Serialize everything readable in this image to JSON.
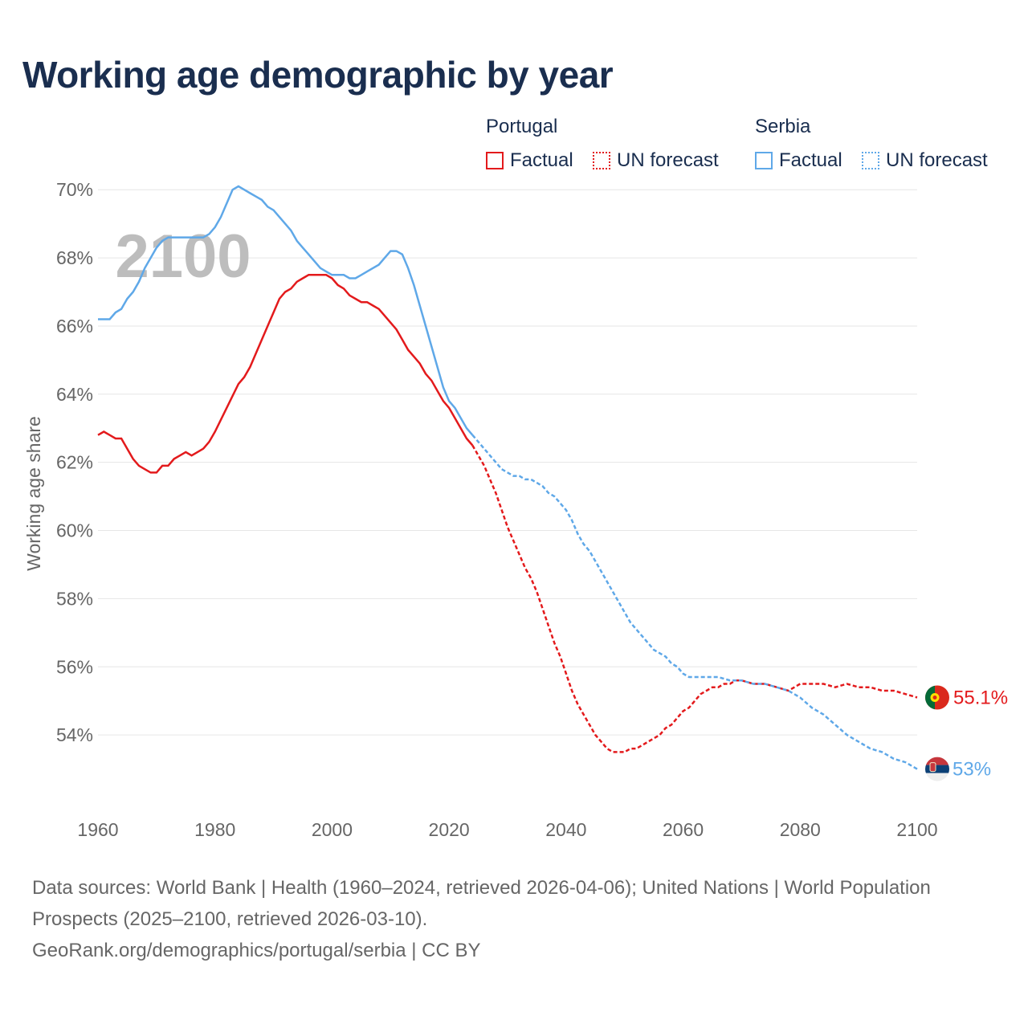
{
  "title": "Working age demographic by year",
  "legend": {
    "portugal": {
      "country": "Portugal",
      "factual": "Factual",
      "forecast": "UN forecast",
      "color": "#e31a1c"
    },
    "serbia": {
      "country": "Serbia",
      "factual": "Factual",
      "forecast": "UN forecast",
      "color": "#5fa8e8"
    }
  },
  "footer": {
    "sources": "Data sources: World Bank | Health (1960–2024, retrieved 2026-04-06); United Nations | World Population Prospects (2025–2100, retrieved 2026-03-10).",
    "credit": "GeoRank.org/demographics/portugal/serbia | CC BY"
  },
  "chart_data": {
    "type": "line",
    "title": "Working age demographic by year",
    "year_watermark": "2100",
    "xlabel": "",
    "ylabel": "Working age share",
    "xlim": [
      1960,
      2100
    ],
    "ylim": [
      52,
      70.5
    ],
    "x_ticks": [
      1960,
      1980,
      2000,
      2020,
      2040,
      2060,
      2080,
      2100
    ],
    "y_ticks": [
      54,
      56,
      58,
      60,
      62,
      64,
      66,
      68,
      70
    ],
    "y_tick_labels": [
      "54%",
      "56%",
      "58%",
      "60%",
      "62%",
      "64%",
      "66%",
      "68%",
      "70%"
    ],
    "grid": true,
    "series": [
      {
        "name": "Portugal",
        "color": "#e31a1c",
        "end_label": "55.1%",
        "factual": {
          "x": [
            1960,
            1961,
            1962,
            1963,
            1964,
            1965,
            1966,
            1967,
            1968,
            1969,
            1970,
            1971,
            1972,
            1973,
            1974,
            1975,
            1976,
            1977,
            1978,
            1979,
            1980,
            1982,
            1984,
            1985,
            1986,
            1987,
            1988,
            1989,
            1990,
            1991,
            1992,
            1993,
            1994,
            1995,
            1996,
            1997,
            1998,
            1999,
            2000,
            2001,
            2002,
            2003,
            2004,
            2005,
            2006,
            2007,
            2008,
            2009,
            2010,
            2011,
            2012,
            2013,
            2014,
            2015,
            2016,
            2017,
            2018,
            2019,
            2020,
            2021,
            2022,
            2023,
            2024
          ],
          "y": [
            62.8,
            62.9,
            62.8,
            62.7,
            62.7,
            62.4,
            62.1,
            61.9,
            61.8,
            61.7,
            61.7,
            61.9,
            61.9,
            62.1,
            62.2,
            62.3,
            62.2,
            62.3,
            62.4,
            62.6,
            62.9,
            63.6,
            64.3,
            64.5,
            64.8,
            65.2,
            65.6,
            66.0,
            66.4,
            66.8,
            67.0,
            67.1,
            67.3,
            67.4,
            67.5,
            67.5,
            67.5,
            67.5,
            67.4,
            67.2,
            67.1,
            66.9,
            66.8,
            66.7,
            66.7,
            66.6,
            66.5,
            66.3,
            66.1,
            65.9,
            65.6,
            65.3,
            65.1,
            64.9,
            64.6,
            64.4,
            64.1,
            63.8,
            63.6,
            63.3,
            63.0,
            62.7,
            62.5
          ]
        },
        "forecast": {
          "x": [
            2024,
            2025,
            2026,
            2027,
            2028,
            2029,
            2030,
            2031,
            2032,
            2033,
            2034,
            2035,
            2036,
            2037,
            2038,
            2039,
            2040,
            2041,
            2042,
            2043,
            2044,
            2045,
            2046,
            2047,
            2048,
            2049,
            2050,
            2051,
            2052,
            2053,
            2054,
            2055,
            2056,
            2057,
            2058,
            2059,
            2060,
            2061,
            2062,
            2063,
            2064,
            2065,
            2066,
            2067,
            2068,
            2069,
            2070,
            2072,
            2074,
            2076,
            2078,
            2080,
            2082,
            2084,
            2086,
            2088,
            2090,
            2092,
            2094,
            2096,
            2098,
            2100
          ],
          "y": [
            62.5,
            62.2,
            61.9,
            61.5,
            61.1,
            60.6,
            60.1,
            59.7,
            59.3,
            58.9,
            58.6,
            58.2,
            57.7,
            57.2,
            56.7,
            56.3,
            55.8,
            55.3,
            54.9,
            54.6,
            54.3,
            54.0,
            53.8,
            53.6,
            53.5,
            53.5,
            53.5,
            53.6,
            53.6,
            53.7,
            53.8,
            53.9,
            54.0,
            54.2,
            54.3,
            54.5,
            54.7,
            54.8,
            55.0,
            55.2,
            55.3,
            55.4,
            55.4,
            55.5,
            55.5,
            55.6,
            55.6,
            55.5,
            55.5,
            55.4,
            55.3,
            55.5,
            55.5,
            55.5,
            55.4,
            55.5,
            55.4,
            55.4,
            55.3,
            55.3,
            55.2,
            55.1
          ]
        }
      },
      {
        "name": "Serbia",
        "color": "#5fa8e8",
        "end_label": "53%",
        "factual": {
          "x": [
            1960,
            1961,
            1962,
            1963,
            1964,
            1965,
            1966,
            1967,
            1968,
            1969,
            1970,
            1971,
            1972,
            1973,
            1974,
            1975,
            1976,
            1977,
            1978,
            1979,
            1980,
            1981,
            1982,
            1983,
            1984,
            1985,
            1986,
            1987,
            1988,
            1989,
            1990,
            1991,
            1992,
            1993,
            1994,
            1995,
            1996,
            1997,
            1998,
            1999,
            2000,
            2001,
            2002,
            2003,
            2004,
            2005,
            2006,
            2007,
            2008,
            2009,
            2010,
            2011,
            2012,
            2013,
            2014,
            2015,
            2016,
            2017,
            2018,
            2019,
            2020,
            2021,
            2022,
            2023,
            2024
          ],
          "y": [
            66.2,
            66.2,
            66.2,
            66.4,
            66.5,
            66.8,
            67.0,
            67.3,
            67.7,
            68.0,
            68.3,
            68.5,
            68.6,
            68.6,
            68.6,
            68.6,
            68.6,
            68.6,
            68.6,
            68.7,
            68.9,
            69.2,
            69.6,
            70.0,
            70.1,
            70.0,
            69.9,
            69.8,
            69.7,
            69.5,
            69.4,
            69.2,
            69.0,
            68.8,
            68.5,
            68.3,
            68.1,
            67.9,
            67.7,
            67.6,
            67.5,
            67.5,
            67.5,
            67.4,
            67.4,
            67.5,
            67.6,
            67.7,
            67.8,
            68.0,
            68.2,
            68.2,
            68.1,
            67.7,
            67.2,
            66.6,
            66.0,
            65.4,
            64.8,
            64.2,
            63.8,
            63.6,
            63.3,
            63.0,
            62.8
          ]
        },
        "forecast": {
          "x": [
            2024,
            2025,
            2026,
            2027,
            2028,
            2029,
            2030,
            2031,
            2032,
            2033,
            2034,
            2035,
            2036,
            2037,
            2038,
            2039,
            2040,
            2041,
            2042,
            2043,
            2044,
            2045,
            2046,
            2047,
            2048,
            2049,
            2050,
            2051,
            2052,
            2053,
            2054,
            2055,
            2056,
            2057,
            2058,
            2059,
            2060,
            2061,
            2062,
            2064,
            2066,
            2068,
            2070,
            2072,
            2074,
            2076,
            2078,
            2080,
            2082,
            2084,
            2086,
            2088,
            2090,
            2092,
            2094,
            2096,
            2098,
            2100
          ],
          "y": [
            62.8,
            62.6,
            62.4,
            62.2,
            62.0,
            61.8,
            61.7,
            61.6,
            61.6,
            61.5,
            61.5,
            61.4,
            61.3,
            61.1,
            61.0,
            60.8,
            60.6,
            60.3,
            59.9,
            59.6,
            59.4,
            59.1,
            58.8,
            58.5,
            58.2,
            57.9,
            57.6,
            57.3,
            57.1,
            56.9,
            56.7,
            56.5,
            56.4,
            56.3,
            56.1,
            56.0,
            55.8,
            55.7,
            55.7,
            55.7,
            55.7,
            55.6,
            55.6,
            55.5,
            55.5,
            55.4,
            55.3,
            55.1,
            54.8,
            54.6,
            54.3,
            54.0,
            53.8,
            53.6,
            53.5,
            53.3,
            53.2,
            53.0
          ]
        }
      }
    ]
  }
}
